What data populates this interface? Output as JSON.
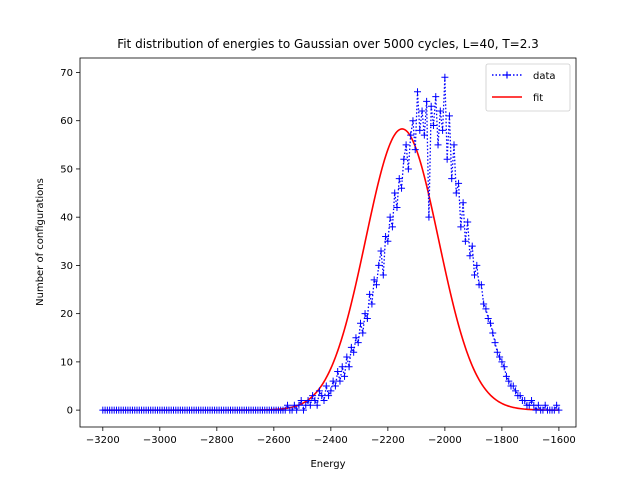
{
  "chart_data": {
    "type": "line",
    "title": "Fit distribution of energies to Gaussian over 5000 cycles, L=40, T=2.3",
    "xlabel": "Energy",
    "ylabel": "Number of configurations",
    "xlim": [
      -3280,
      -1540
    ],
    "ylim": [
      -3.5,
      73
    ],
    "xticks": [
      -3200,
      -3000,
      -2800,
      -2600,
      -2400,
      -2200,
      -2000,
      -1800,
      -1600
    ],
    "yticks": [
      0,
      10,
      20,
      30,
      40,
      50,
      60,
      70
    ],
    "xtick_labels": [
      "−3200",
      "−3000",
      "−2800",
      "−2600",
      "−2400",
      "−2200",
      "−2000",
      "−1800",
      "−1600"
    ],
    "ytick_labels": [
      "0",
      "10",
      "20",
      "30",
      "40",
      "50",
      "60",
      "70"
    ],
    "grid": false,
    "legend_position": "top-right",
    "series": [
      {
        "name": "data",
        "style": "dotted line with plus markers",
        "color": "#0000ff",
        "x_start": -3200,
        "x_step": 8,
        "y": [
          0,
          0,
          0,
          0,
          0,
          0,
          0,
          0,
          0,
          0,
          0,
          0,
          0,
          0,
          0,
          0,
          0,
          0,
          0,
          0,
          0,
          0,
          0,
          0,
          0,
          0,
          0,
          0,
          0,
          0,
          0,
          0,
          0,
          0,
          0,
          0,
          0,
          0,
          0,
          0,
          0,
          0,
          0,
          0,
          0,
          0,
          0,
          0,
          0,
          0,
          0,
          0,
          0,
          0,
          0,
          0,
          0,
          0,
          0,
          0,
          0,
          0,
          0,
          0,
          0,
          0,
          0,
          0,
          0,
          0,
          0,
          0,
          0,
          0,
          0,
          0,
          0,
          0,
          0,
          0,
          0,
          1,
          0,
          0,
          1,
          0,
          1,
          2,
          0,
          1,
          2,
          1,
          3,
          2,
          1,
          4,
          3,
          2,
          5,
          3,
          4,
          6,
          5,
          8,
          6,
          9,
          7,
          11,
          9,
          13,
          12,
          15,
          14,
          18,
          16,
          20,
          19,
          24,
          22,
          27,
          26,
          30,
          33,
          28,
          36,
          35,
          40,
          38,
          45,
          42,
          48,
          46,
          52,
          55,
          50,
          57,
          60,
          54,
          66,
          58,
          62,
          57,
          64,
          40,
          63,
          59,
          65,
          55,
          62,
          58,
          69,
          52,
          61,
          48,
          55,
          45,
          47,
          38,
          43,
          35,
          39,
          32,
          34,
          28,
          30,
          26,
          26,
          22,
          21,
          19,
          18,
          16,
          14,
          12,
          11,
          10,
          9,
          7,
          6,
          5,
          5,
          4,
          3,
          3,
          2,
          2,
          1,
          1,
          2,
          1,
          0,
          1,
          0,
          0,
          1,
          0,
          0,
          0,
          0,
          1,
          0
        ]
      },
      {
        "name": "fit",
        "style": "solid line",
        "color": "#ff0000",
        "model": "gaussian",
        "amplitude": 58.3,
        "mean": -2150,
        "sigma": 128,
        "x_range": [
          -3200,
          -1600
        ]
      }
    ]
  }
}
